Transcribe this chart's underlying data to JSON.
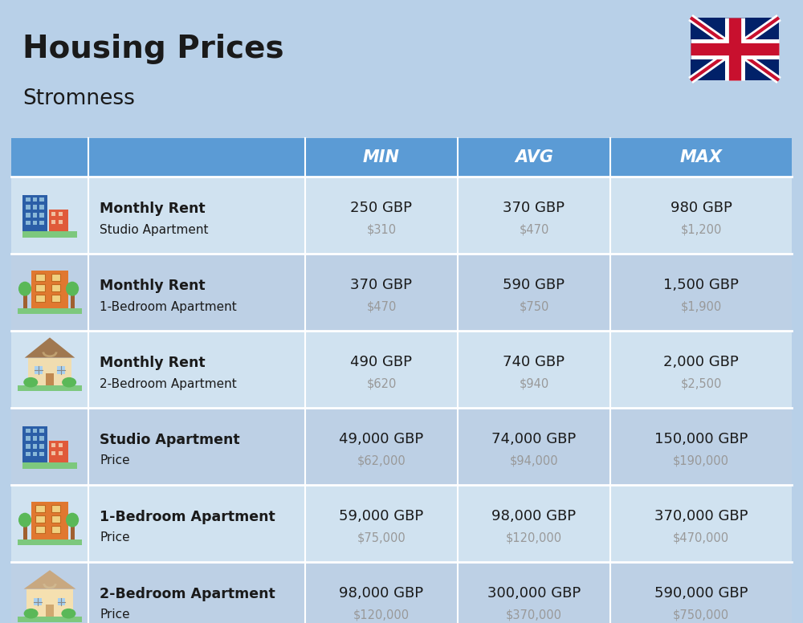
{
  "title": "Housing Prices",
  "subtitle": "Stromness",
  "bg_color": "#b8d0e8",
  "header_bg": "#5b9bd5",
  "header_text_color": "#ffffff",
  "row_bg_even": "#d0e2f0",
  "row_bg_odd": "#bdd0e5",
  "col_headers": [
    "MIN",
    "AVG",
    "MAX"
  ],
  "rows": [
    {
      "label_bold": "Monthly Rent",
      "label_sub": "Studio Apartment",
      "icon": "studio_blue",
      "min_gbp": "250 GBP",
      "min_usd": "$310",
      "avg_gbp": "370 GBP",
      "avg_usd": "$470",
      "max_gbp": "980 GBP",
      "max_usd": "$1,200"
    },
    {
      "label_bold": "Monthly Rent",
      "label_sub": "1-Bedroom Apartment",
      "icon": "apartment_orange",
      "min_gbp": "370 GBP",
      "min_usd": "$470",
      "avg_gbp": "590 GBP",
      "avg_usd": "$750",
      "max_gbp": "1,500 GBP",
      "max_usd": "$1,900"
    },
    {
      "label_bold": "Monthly Rent",
      "label_sub": "2-Bedroom Apartment",
      "icon": "house_beige",
      "min_gbp": "490 GBP",
      "min_usd": "$620",
      "avg_gbp": "740 GBP",
      "avg_usd": "$940",
      "max_gbp": "2,000 GBP",
      "max_usd": "$2,500"
    },
    {
      "label_bold": "Studio Apartment",
      "label_sub": "Price",
      "icon": "studio_blue",
      "min_gbp": "49,000 GBP",
      "min_usd": "$62,000",
      "avg_gbp": "74,000 GBP",
      "avg_usd": "$94,000",
      "max_gbp": "150,000 GBP",
      "max_usd": "$190,000"
    },
    {
      "label_bold": "1-Bedroom Apartment",
      "label_sub": "Price",
      "icon": "apartment_orange",
      "min_gbp": "59,000 GBP",
      "min_usd": "$75,000",
      "avg_gbp": "98,000 GBP",
      "avg_usd": "$120,000",
      "max_gbp": "370,000 GBP",
      "max_usd": "$470,000"
    },
    {
      "label_bold": "2-Bedroom Apartment",
      "label_sub": "Price",
      "icon": "house_brown",
      "min_gbp": "98,000 GBP",
      "min_usd": "$120,000",
      "avg_gbp": "300,000 GBP",
      "avg_usd": "$370,000",
      "max_gbp": "590,000 GBP",
      "max_usd": "$750,000"
    }
  ],
  "flag_blue": "#012169",
  "flag_red": "#C8102E",
  "divider_color": "#ffffff",
  "text_dark": "#1a1a1a",
  "text_gray": "#999999"
}
